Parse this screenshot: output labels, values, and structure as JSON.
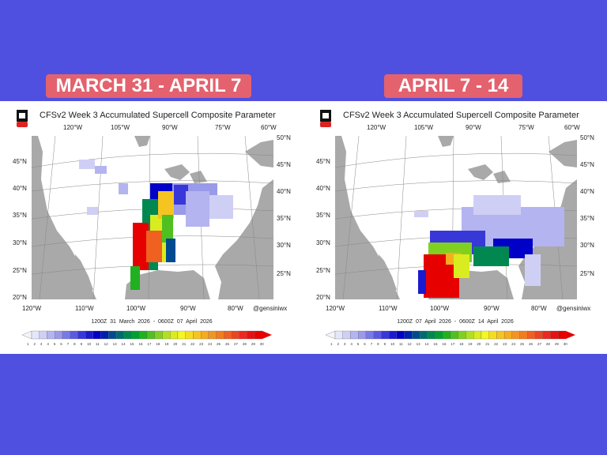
{
  "panels": [
    {
      "banner": "MARCH 31 - APRIL 7",
      "title": "CFSv2 Week 3 Accumulated Supercell Composite Parameter",
      "time": "1200Z 31  March  2026  -  0600Z 07  April  2026",
      "credit": "@gensiniwx"
    },
    {
      "banner": "APRIL 7 - 14",
      "title": "CFSv2 Week 3 Accumulated Supercell Composite Parameter",
      "time": "1200Z 07  April  2026  -  0600Z 14  April  2026",
      "credit": "@gensiniwx"
    }
  ],
  "top_lon": [
    "120°W",
    "105°W",
    "90°W",
    "75°W",
    "60°W"
  ],
  "bottom_lon": [
    "120°W",
    "110°W",
    "100°W",
    "90°W",
    "80°W"
  ],
  "lat_left": [
    "45°N",
    "40°N",
    "35°N",
    "30°N",
    "25°N",
    "20°N"
  ],
  "lat_right": [
    "50°N",
    "45°N",
    "40°N",
    "35°N",
    "30°N",
    "25°N"
  ],
  "colorbar": {
    "labels": [
      "1",
      "2",
      "3",
      "4",
      "5",
      "6",
      "7",
      "8",
      "9",
      "10",
      "11",
      "12",
      "13",
      "14",
      "15",
      "16",
      "17",
      "18",
      "19",
      "20",
      "21",
      "22",
      "23",
      "24",
      "25",
      "26",
      "27",
      "28",
      "29",
      "30"
    ],
    "colors": [
      "#e6e6fa",
      "#cfcff5",
      "#b4b4f0",
      "#9a9aeb",
      "#7a7ae6",
      "#5a5ae0",
      "#3838d8",
      "#1a1ad0",
      "#0000c8",
      "#0020b0",
      "#004a90",
      "#006a70",
      "#008850",
      "#00a030",
      "#20b020",
      "#50c020",
      "#80d020",
      "#b0e020",
      "#d8ec20",
      "#f6f620",
      "#f6dc20",
      "#f6c420",
      "#f6ac20",
      "#f49420",
      "#f27c20",
      "#f06020",
      "#ee4420",
      "#ec2820",
      "#ea1010",
      "#e60000"
    ]
  },
  "colors": {
    "background": "#4f4fe0",
    "banner": "#f06464",
    "land": "#ffffff",
    "water": "#a9a9a9"
  }
}
